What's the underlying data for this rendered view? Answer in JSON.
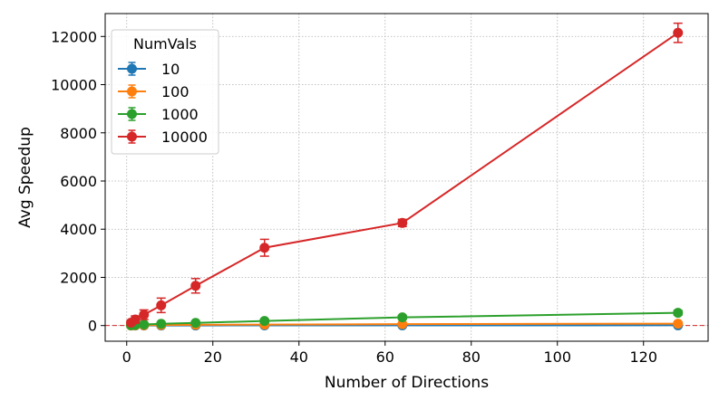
{
  "chart_data": {
    "type": "line",
    "xlabel": "Number of Directions",
    "ylabel": "Avg Speedup",
    "xlim": [
      -5,
      135
    ],
    "ylim": [
      -650,
      12950
    ],
    "xticks": [
      0,
      20,
      40,
      60,
      80,
      100,
      120
    ],
    "yticks": [
      0,
      2000,
      4000,
      6000,
      8000,
      10000,
      12000
    ],
    "grid": true,
    "reference_line": {
      "y": 1,
      "style": "dashed",
      "color": "#d62728"
    },
    "legend": {
      "title": "NumVals",
      "placement": "top-left"
    },
    "x": [
      1,
      2,
      4,
      8,
      16,
      32,
      64,
      128
    ],
    "series": [
      {
        "name": "10",
        "color": "#1f77b4",
        "values": [
          1,
          2,
          3,
          4,
          5,
          6,
          8,
          10
        ],
        "errors": [
          0,
          0,
          1,
          1,
          1,
          2,
          2,
          3
        ]
      },
      {
        "name": "100",
        "color": "#ff7f0e",
        "values": [
          5,
          10,
          15,
          20,
          30,
          40,
          60,
          80
        ],
        "errors": [
          2,
          3,
          4,
          5,
          6,
          8,
          10,
          15
        ]
      },
      {
        "name": "1000",
        "color": "#2ca02c",
        "values": [
          15,
          25,
          45,
          75,
          110,
          190,
          340,
          530
        ],
        "errors": [
          10,
          15,
          20,
          30,
          40,
          60,
          80,
          100
        ]
      },
      {
        "name": "10000",
        "color": "#d62728",
        "values": [
          120,
          250,
          450,
          840,
          1650,
          3230,
          4260,
          12150
        ],
        "errors": [
          100,
          150,
          200,
          300,
          300,
          350,
          150,
          400
        ]
      }
    ]
  }
}
